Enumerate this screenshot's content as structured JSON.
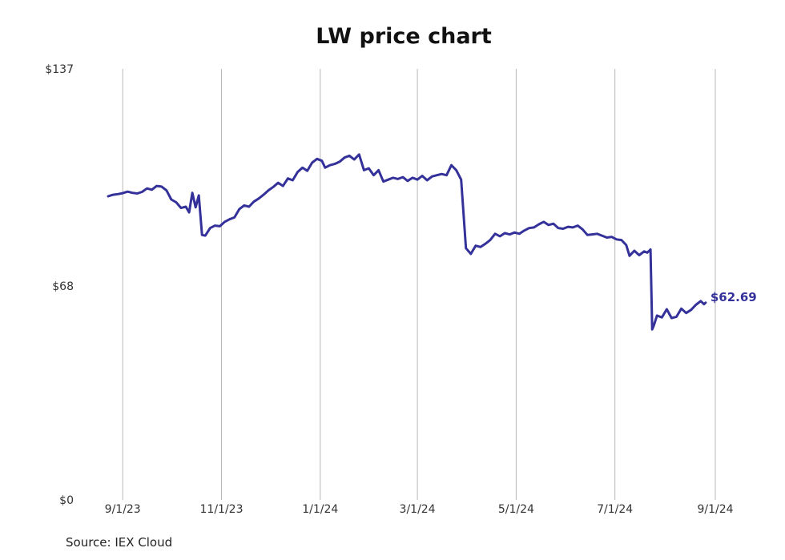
{
  "chart_data": {
    "type": "line",
    "title": "LW price chart",
    "source": "Source: IEX Cloud",
    "ylim": [
      0,
      137
    ],
    "y_ticks": [
      {
        "value": 0,
        "label": "$0"
      },
      {
        "value": 68,
        "label": "$68"
      },
      {
        "value": 137,
        "label": "$137"
      }
    ],
    "x_ticks": [
      {
        "date": "2023-09-01",
        "label": "9/1/23"
      },
      {
        "date": "2023-11-01",
        "label": "11/1/23"
      },
      {
        "date": "2024-01-01",
        "label": "1/1/24"
      },
      {
        "date": "2024-03-01",
        "label": "3/1/24"
      },
      {
        "date": "2024-05-01",
        "label": "5/1/24"
      },
      {
        "date": "2024-07-01",
        "label": "7/1/24"
      },
      {
        "date": "2024-09-01",
        "label": "9/1/24"
      }
    ],
    "xlim": [
      "2023-08-23",
      "2024-09-01"
    ],
    "grid": "vertical",
    "line_color": "#34329a",
    "end_label": "$62.69",
    "series": [
      {
        "points": [
          [
            "2023-08-23",
            96.5
          ],
          [
            "2023-08-26",
            97.0
          ],
          [
            "2023-08-29",
            97.2
          ],
          [
            "2023-09-01",
            97.5
          ],
          [
            "2023-09-04",
            98.0
          ],
          [
            "2023-09-07",
            97.6
          ],
          [
            "2023-09-10",
            97.4
          ],
          [
            "2023-09-13",
            97.9
          ],
          [
            "2023-09-16",
            99.0
          ],
          [
            "2023-09-19",
            98.6
          ],
          [
            "2023-09-22",
            99.8
          ],
          [
            "2023-09-25",
            99.6
          ],
          [
            "2023-09-28",
            98.4
          ],
          [
            "2023-10-01",
            95.5
          ],
          [
            "2023-10-04",
            94.6
          ],
          [
            "2023-10-07",
            92.8
          ],
          [
            "2023-10-10",
            93.2
          ],
          [
            "2023-10-12",
            91.4
          ],
          [
            "2023-10-14",
            97.6
          ],
          [
            "2023-10-16",
            93.0
          ],
          [
            "2023-10-18",
            96.8
          ],
          [
            "2023-10-20",
            84.2
          ],
          [
            "2023-10-22",
            84.0
          ],
          [
            "2023-10-25",
            86.4
          ],
          [
            "2023-10-28",
            87.2
          ],
          [
            "2023-10-31",
            87.0
          ],
          [
            "2023-11-03",
            88.4
          ],
          [
            "2023-11-06",
            89.2
          ],
          [
            "2023-11-09",
            89.8
          ],
          [
            "2023-11-12",
            92.4
          ],
          [
            "2023-11-15",
            93.6
          ],
          [
            "2023-11-18",
            93.2
          ],
          [
            "2023-11-21",
            94.8
          ],
          [
            "2023-11-24",
            95.8
          ],
          [
            "2023-11-27",
            97.0
          ],
          [
            "2023-11-30",
            98.4
          ],
          [
            "2023-12-03",
            99.5
          ],
          [
            "2023-12-06",
            100.8
          ],
          [
            "2023-12-09",
            99.8
          ],
          [
            "2023-12-12",
            102.2
          ],
          [
            "2023-12-15",
            101.6
          ],
          [
            "2023-12-18",
            104.2
          ],
          [
            "2023-12-21",
            105.6
          ],
          [
            "2023-12-24",
            104.6
          ],
          [
            "2023-12-27",
            107.2
          ],
          [
            "2023-12-30",
            108.4
          ],
          [
            "2024-01-02",
            107.8
          ],
          [
            "2024-01-04",
            105.6
          ],
          [
            "2024-01-07",
            106.4
          ],
          [
            "2024-01-10",
            106.8
          ],
          [
            "2024-01-13",
            107.5
          ],
          [
            "2024-01-16",
            108.8
          ],
          [
            "2024-01-19",
            109.4
          ],
          [
            "2024-01-22",
            108.2
          ],
          [
            "2024-01-25",
            109.8
          ],
          [
            "2024-01-28",
            104.8
          ],
          [
            "2024-01-31",
            105.4
          ],
          [
            "2024-02-03",
            103.2
          ],
          [
            "2024-02-06",
            104.8
          ],
          [
            "2024-02-09",
            101.2
          ],
          [
            "2024-02-12",
            101.8
          ],
          [
            "2024-02-15",
            102.4
          ],
          [
            "2024-02-18",
            102.0
          ],
          [
            "2024-02-21",
            102.6
          ],
          [
            "2024-02-24",
            101.4
          ],
          [
            "2024-02-27",
            102.4
          ],
          [
            "2024-03-01",
            101.8
          ],
          [
            "2024-03-04",
            103.0
          ],
          [
            "2024-03-07",
            101.6
          ],
          [
            "2024-03-10",
            102.8
          ],
          [
            "2024-03-13",
            103.2
          ],
          [
            "2024-03-16",
            103.6
          ],
          [
            "2024-03-19",
            103.2
          ],
          [
            "2024-03-22",
            106.4
          ],
          [
            "2024-03-25",
            104.8
          ],
          [
            "2024-03-28",
            101.8
          ],
          [
            "2024-03-31",
            80.0
          ],
          [
            "2024-04-03",
            78.2
          ],
          [
            "2024-04-06",
            80.8
          ],
          [
            "2024-04-09",
            80.4
          ],
          [
            "2024-04-12",
            81.4
          ],
          [
            "2024-04-15",
            82.6
          ],
          [
            "2024-04-18",
            84.6
          ],
          [
            "2024-04-21",
            83.8
          ],
          [
            "2024-04-24",
            84.8
          ],
          [
            "2024-04-27",
            84.4
          ],
          [
            "2024-04-30",
            85.0
          ],
          [
            "2024-05-03",
            84.6
          ],
          [
            "2024-05-06",
            85.6
          ],
          [
            "2024-05-09",
            86.4
          ],
          [
            "2024-05-12",
            86.6
          ],
          [
            "2024-05-15",
            87.6
          ],
          [
            "2024-05-18",
            88.4
          ],
          [
            "2024-05-21",
            87.4
          ],
          [
            "2024-05-24",
            87.8
          ],
          [
            "2024-05-27",
            86.4
          ],
          [
            "2024-05-30",
            86.2
          ],
          [
            "2024-06-02",
            86.8
          ],
          [
            "2024-06-05",
            86.6
          ],
          [
            "2024-06-08",
            87.2
          ],
          [
            "2024-06-11",
            86.0
          ],
          [
            "2024-06-14",
            84.2
          ],
          [
            "2024-06-17",
            84.4
          ],
          [
            "2024-06-20",
            84.6
          ],
          [
            "2024-06-23",
            84.0
          ],
          [
            "2024-06-26",
            83.4
          ],
          [
            "2024-06-29",
            83.6
          ],
          [
            "2024-07-02",
            82.8
          ],
          [
            "2024-07-05",
            82.6
          ],
          [
            "2024-07-08",
            81.0
          ],
          [
            "2024-07-10",
            77.6
          ],
          [
            "2024-07-13",
            79.2
          ],
          [
            "2024-07-16",
            77.8
          ],
          [
            "2024-07-19",
            79.0
          ],
          [
            "2024-07-21",
            78.6
          ],
          [
            "2024-07-23",
            79.6
          ],
          [
            "2024-07-24",
            54.2
          ],
          [
            "2024-07-25",
            55.4
          ],
          [
            "2024-07-27",
            58.6
          ],
          [
            "2024-07-30",
            58.0
          ],
          [
            "2024-08-02",
            60.6
          ],
          [
            "2024-08-05",
            57.8
          ],
          [
            "2024-08-08",
            58.2
          ],
          [
            "2024-08-11",
            60.8
          ],
          [
            "2024-08-14",
            59.4
          ],
          [
            "2024-08-17",
            60.4
          ],
          [
            "2024-08-20",
            62.0
          ],
          [
            "2024-08-23",
            63.2
          ],
          [
            "2024-08-25",
            62.2
          ],
          [
            "2024-08-26",
            62.69
          ]
        ]
      }
    ]
  }
}
